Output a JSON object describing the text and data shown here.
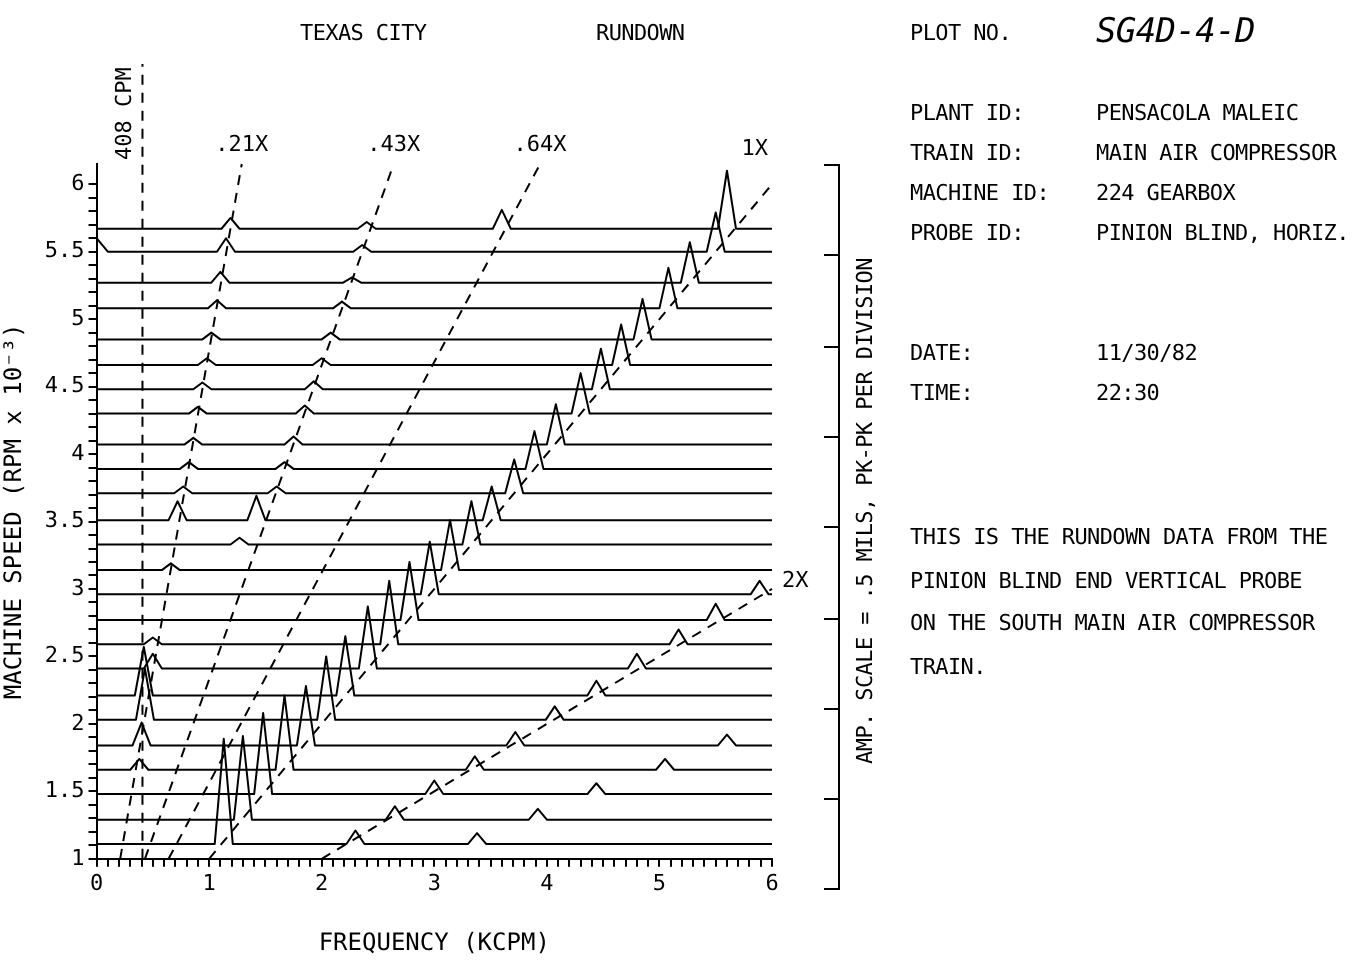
{
  "chart_data": {
    "type": "line",
    "title": "TEXAS CITY",
    "subtitle": "RUNDOWN",
    "xlabel": "FREQUENCY (KCPM)",
    "ylabel": "MACHINE SPEED (RPM x 10⁻³)",
    "y2label": "AMP. SCALE = .5 MILS, PK-PK PER DIVISION",
    "xlim": [
      0,
      6
    ],
    "ylim": [
      1,
      6.15
    ],
    "xticks": [
      0,
      {
        "value": 0.1,
        "label": null
      },
      {
        "value": 0.2,
        "label": null
      },
      {
        "value": 0.3,
        "label": null
      },
      {
        "value": 0.4,
        "label": null
      },
      {
        "value": 0.5,
        "label": null
      },
      {
        "value": 0.6,
        "label": null
      },
      {
        "value": 0.7,
        "label": null
      },
      {
        "value": 0.8,
        "label": null
      },
      {
        "value": 0.9,
        "label": null
      },
      1,
      {
        "value": 1.1,
        "label": null
      },
      {
        "value": 1.2,
        "label": null
      },
      {
        "value": 1.3,
        "label": null
      },
      {
        "value": 1.4,
        "label": null
      },
      {
        "value": 1.5,
        "label": null
      },
      {
        "value": 1.6,
        "label": null
      },
      {
        "value": 1.7,
        "label": null
      },
      {
        "value": 1.8,
        "label": null
      },
      {
        "value": 1.9,
        "label": null
      },
      2,
      {
        "value": 2.1,
        "label": null
      },
      {
        "value": 2.2,
        "label": null
      },
      {
        "value": 2.3,
        "label": null
      },
      {
        "value": 2.4,
        "label": null
      },
      {
        "value": 2.5,
        "label": null
      },
      {
        "value": 2.6,
        "label": null
      },
      {
        "value": 2.7,
        "label": null
      },
      {
        "value": 2.8,
        "label": null
      },
      {
        "value": 2.9,
        "label": null
      },
      3,
      {
        "value": 3.1,
        "label": null
      },
      {
        "value": 3.2,
        "label": null
      },
      {
        "value": 3.3,
        "label": null
      },
      {
        "value": 3.4,
        "label": null
      },
      {
        "value": 3.5,
        "label": null
      },
      {
        "value": 3.6,
        "label": null
      },
      {
        "value": 3.7,
        "label": null
      },
      {
        "value": 3.8,
        "label": null
      },
      {
        "value": 3.9,
        "label": null
      },
      4,
      {
        "value": 4.1,
        "label": null
      },
      {
        "value": 4.2,
        "label": null
      },
      {
        "value": 4.3,
        "label": null
      },
      {
        "value": 4.4,
        "label": null
      },
      {
        "value": 4.5,
        "label": null
      },
      {
        "value": 4.6,
        "label": null
      },
      {
        "value": 4.7,
        "label": null
      },
      {
        "value": 4.8,
        "label": null
      },
      {
        "value": 4.9,
        "label": null
      },
      5,
      {
        "value": 5.1,
        "label": null
      },
      {
        "value": 5.2,
        "label": null
      },
      {
        "value": 5.3,
        "label": null
      },
      {
        "value": 5.4,
        "label": null
      },
      {
        "value": 5.5,
        "label": null
      },
      {
        "value": 5.6,
        "label": null
      },
      {
        "value": 5.7,
        "label": null
      },
      {
        "value": 5.8,
        "label": null
      },
      {
        "value": 5.9,
        "label": null
      },
      6
    ],
    "yticks": [
      1,
      {
        "value": 1.1,
        "label": null
      },
      {
        "value": 1.2,
        "label": null
      },
      {
        "value": 1.3,
        "label": null
      },
      {
        "value": 1.4,
        "label": null
      },
      1.5,
      {
        "value": 1.6,
        "label": null
      },
      {
        "value": 1.7,
        "label": null
      },
      {
        "value": 1.8,
        "label": null
      },
      {
        "value": 1.9,
        "label": null
      },
      2,
      {
        "value": 2.1,
        "label": null
      },
      {
        "value": 2.2,
        "label": null
      },
      {
        "value": 2.3,
        "label": null
      },
      {
        "value": 2.4,
        "label": null
      },
      2.5,
      {
        "value": 2.6,
        "label": null
      },
      {
        "value": 2.7,
        "label": null
      },
      {
        "value": 2.8,
        "label": null
      },
      {
        "value": 2.9,
        "label": null
      },
      3,
      {
        "value": 3.1,
        "label": null
      },
      {
        "value": 3.2,
        "label": null
      },
      {
        "value": 3.3,
        "label": null
      },
      {
        "value": 3.4,
        "label": null
      },
      3.5,
      {
        "value": 3.6,
        "label": null
      },
      {
        "value": 3.7,
        "label": null
      },
      {
        "value": 3.8,
        "label": null
      },
      {
        "value": 3.9,
        "label": null
      },
      4,
      {
        "value": 4.1,
        "label": null
      },
      {
        "value": 4.2,
        "label": null
      },
      {
        "value": 4.3,
        "label": null
      },
      {
        "value": 4.4,
        "label": null
      },
      4.5,
      {
        "value": 4.6,
        "label": null
      },
      {
        "value": 4.7,
        "label": null
      },
      {
        "value": 4.8,
        "label": null
      },
      {
        "value": 4.9,
        "label": null
      },
      5,
      {
        "value": 5.1,
        "label": null
      },
      {
        "value": 5.2,
        "label": null
      },
      {
        "value": 5.3,
        "label": null
      },
      {
        "value": 5.4,
        "label": null
      },
      5.5,
      {
        "value": 5.6,
        "label": null
      },
      {
        "value": 5.7,
        "label": null
      },
      {
        "value": 5.8,
        "label": null
      },
      {
        "value": 5.9,
        "label": null
      },
      6
    ],
    "grid": false,
    "legend": false,
    "marker": "none",
    "ref_lines": [
      {
        "axis": "x",
        "value": 0.408,
        "label": "408 CPM",
        "line_style": "dashed"
      }
    ],
    "annotations": [
      "PLOT NO.",
      "SG4D-4-D",
      "PLANT ID:",
      "PENSACOLA MALEIC",
      "TRAIN ID:",
      "MAIN AIR COMPRESSOR",
      "MACHINE ID:",
      "224 GEARBOX",
      "PROBE ID:",
      "PINION BLIND, HORIZ.",
      "DATE:",
      "11/30/82",
      "TIME:",
      "22:30",
      "THIS IS THE RUNDOWN DATA FROM THE",
      "PINION BLIND END VERTICAL PROBE",
      "ON THE SOUTH MAIN AIR COMPRESSOR",
      "TRAIN."
    ],
    "series": [
      {
        "color": "#000000",
        "x": [
          0,
          1.05,
          1.13,
          1.21,
          2.22,
          2.3,
          2.38,
          3.3,
          3.38,
          3.46,
          6
        ],
        "values": [
          1.11,
          1.11,
          1.89,
          1.11,
          1.11,
          1.21,
          1.11,
          1.11,
          1.19,
          1.11,
          1.11
        ]
      },
      {
        "color": "#000000",
        "x": [
          0,
          1.22,
          1.3,
          1.38,
          2.57,
          2.65,
          2.73,
          3.84,
          3.92,
          4,
          6
        ],
        "values": [
          1.29,
          1.29,
          1.91,
          1.29,
          1.29,
          1.39,
          1.29,
          1.29,
          1.37,
          1.29,
          1.29
        ]
      },
      {
        "color": "#000000",
        "x": [
          0,
          1.4,
          1.48,
          1.56,
          2.92,
          3,
          3.08,
          4.36,
          4.44,
          4.52,
          6
        ],
        "values": [
          1.48,
          1.48,
          2.08,
          1.48,
          1.48,
          1.58,
          1.48,
          1.48,
          1.56,
          1.48,
          1.48
        ]
      },
      {
        "color": "#000000",
        "x": [
          0,
          0.3,
          0.38,
          0.46,
          1.59,
          1.67,
          1.75,
          3.28,
          3.36,
          3.44,
          4.97,
          5.05,
          5.13,
          6
        ],
        "values": [
          1.66,
          1.66,
          1.74,
          1.66,
          1.66,
          2.21,
          1.66,
          1.66,
          1.76,
          1.66,
          1.66,
          1.74,
          1.66,
          1.66
        ]
      },
      {
        "color": "#000000",
        "x": [
          0,
          0.32,
          0.4,
          0.48,
          1.78,
          1.86,
          1.94,
          3.64,
          3.72,
          3.8,
          5.52,
          5.6,
          5.68,
          6
        ],
        "values": [
          1.84,
          1.84,
          2.01,
          1.84,
          1.84,
          2.28,
          1.84,
          1.84,
          1.94,
          1.84,
          1.84,
          1.92,
          1.84,
          1.84
        ]
      },
      {
        "color": "#000000",
        "x": [
          0,
          0.35,
          0.43,
          0.51,
          1.96,
          2.04,
          2.12,
          3.99,
          4.07,
          4.15,
          6
        ],
        "values": [
          2.03,
          2.03,
          2.41,
          2.03,
          2.03,
          2.5,
          2.03,
          2.03,
          2.13,
          2.03,
          2.03
        ]
      },
      {
        "color": "#000000",
        "x": [
          0,
          0.34,
          0.42,
          0.5,
          2.13,
          2.21,
          2.29,
          4.36,
          4.44,
          4.52,
          6
        ],
        "values": [
          2.21,
          2.21,
          2.57,
          2.21,
          2.21,
          2.65,
          2.21,
          2.21,
          2.32,
          2.21,
          2.21
        ]
      },
      {
        "color": "#000000",
        "x": [
          0,
          0.42,
          0.5,
          0.58,
          2.33,
          2.41,
          2.49,
          4.72,
          4.8,
          4.88,
          6
        ],
        "values": [
          2.41,
          2.41,
          2.52,
          2.41,
          2.41,
          2.87,
          2.41,
          2.41,
          2.52,
          2.41,
          2.41
        ]
      },
      {
        "color": "#000000",
        "x": [
          0,
          0.42,
          0.5,
          0.58,
          2.52,
          2.6,
          2.68,
          5.09,
          5.17,
          5.25,
          6
        ],
        "values": [
          2.59,
          2.59,
          2.64,
          2.59,
          2.59,
          3.06,
          2.59,
          2.59,
          2.7,
          2.59,
          2.59
        ]
      },
      {
        "color": "#000000",
        "x": [
          0,
          2.7,
          2.78,
          2.86,
          5.42,
          5.5,
          5.58,
          6
        ],
        "values": [
          2.77,
          2.77,
          3.2,
          2.77,
          2.77,
          2.89,
          2.77,
          2.77
        ]
      },
      {
        "color": "#000000",
        "x": [
          0,
          2.88,
          2.96,
          3.04,
          5.81,
          5.89,
          5.97,
          6
        ],
        "values": [
          2.96,
          2.96,
          3.35,
          2.96,
          2.96,
          3.06,
          2.96,
          2.96
        ]
      },
      {
        "color": "#000000",
        "x": [
          0,
          0.58,
          0.66,
          0.74,
          3.06,
          3.14,
          3.22,
          6
        ],
        "values": [
          3.14,
          3.14,
          3.19,
          3.14,
          3.14,
          3.51,
          3.14,
          3.14
        ]
      },
      {
        "color": "#000000",
        "x": [
          0,
          1.19,
          1.27,
          1.35,
          3.25,
          3.33,
          3.41,
          6
        ],
        "values": [
          3.33,
          3.33,
          3.38,
          3.33,
          3.33,
          3.65,
          3.33,
          3.33
        ]
      },
      {
        "color": "#000000",
        "x": [
          0,
          0.64,
          0.72,
          0.8,
          1.34,
          1.42,
          1.5,
          3.43,
          3.51,
          3.59,
          6
        ],
        "values": [
          3.51,
          3.51,
          3.65,
          3.51,
          3.51,
          3.69,
          3.51,
          3.51,
          3.76,
          3.51,
          3.51
        ]
      },
      {
        "color": "#000000",
        "x": [
          0,
          0.69,
          0.77,
          0.85,
          1.52,
          1.6,
          1.68,
          3.63,
          3.71,
          3.79,
          6
        ],
        "values": [
          3.71,
          3.71,
          3.76,
          3.71,
          3.71,
          3.76,
          3.71,
          3.71,
          3.96,
          3.71,
          3.71
        ]
      },
      {
        "color": "#000000",
        "x": [
          0,
          0.74,
          0.82,
          0.9,
          1.59,
          1.67,
          1.75,
          3.81,
          3.89,
          3.97,
          6
        ],
        "values": [
          3.89,
          3.89,
          3.94,
          3.89,
          3.89,
          3.94,
          3.89,
          3.89,
          4.17,
          3.89,
          3.89
        ]
      },
      {
        "color": "#000000",
        "x": [
          0,
          0.78,
          0.86,
          0.94,
          1.67,
          1.75,
          1.83,
          4,
          4.08,
          4.16,
          6
        ],
        "values": [
          4.07,
          4.07,
          4.12,
          4.07,
          4.07,
          4.13,
          4.07,
          4.07,
          4.37,
          4.07,
          4.07
        ]
      },
      {
        "color": "#000000",
        "x": [
          0,
          0.82,
          0.9,
          0.98,
          1.77,
          1.85,
          1.93,
          4.22,
          4.3,
          4.38,
          6
        ],
        "values": [
          4.3,
          4.3,
          4.35,
          4.3,
          4.3,
          4.36,
          4.3,
          4.3,
          4.6,
          4.3,
          4.3
        ]
      },
      {
        "color": "#000000",
        "x": [
          0,
          0.86,
          0.94,
          1.02,
          1.85,
          1.93,
          2.01,
          4.4,
          4.48,
          4.56,
          6
        ],
        "values": [
          4.48,
          4.48,
          4.53,
          4.48,
          4.48,
          4.54,
          4.48,
          4.48,
          4.78,
          4.48,
          4.48
        ]
      },
      {
        "color": "#000000",
        "x": [
          0,
          0.9,
          0.98,
          1.06,
          1.92,
          2,
          2.08,
          4.58,
          4.66,
          4.74,
          6
        ],
        "values": [
          4.66,
          4.66,
          4.71,
          4.66,
          4.66,
          4.71,
          4.66,
          4.66,
          4.96,
          4.66,
          4.66
        ]
      },
      {
        "color": "#000000",
        "x": [
          0,
          0.94,
          1.02,
          1.1,
          2,
          2.08,
          2.16,
          4.77,
          4.85,
          4.93,
          6
        ],
        "values": [
          4.85,
          4.85,
          4.9,
          4.85,
          4.85,
          4.9,
          4.85,
          4.85,
          5.15,
          4.85,
          4.85
        ]
      },
      {
        "color": "#000000",
        "x": [
          0,
          0.99,
          1.07,
          1.15,
          2.1,
          2.18,
          2.26,
          5,
          5.08,
          5.16,
          6
        ],
        "values": [
          5.08,
          5.08,
          5.14,
          5.08,
          5.08,
          5.13,
          5.08,
          5.08,
          5.38,
          5.08,
          5.08
        ]
      },
      {
        "color": "#000000",
        "x": [
          0,
          1.02,
          1.1,
          1.18,
          2.19,
          2.27,
          2.35,
          5.19,
          5.27,
          5.35,
          6
        ],
        "values": [
          5.27,
          5.27,
          5.35,
          5.27,
          5.27,
          5.31,
          5.27,
          5.27,
          5.57,
          5.27,
          5.27
        ]
      },
      {
        "color": "#000000",
        "x": [
          0,
          0.1,
          1.07,
          1.15,
          1.23,
          2.28,
          2.36,
          2.44,
          5.42,
          5.5,
          5.58,
          6
        ],
        "values": [
          5.6,
          5.5,
          5.5,
          5.6,
          5.5,
          5.5,
          5.55,
          5.5,
          5.5,
          5.79,
          5.5,
          5.5
        ]
      },
      {
        "color": "#000000",
        "x": [
          0,
          1.11,
          1.19,
          1.27,
          2.32,
          2.4,
          2.48,
          3.52,
          3.6,
          3.68,
          5.52,
          5.6,
          5.68,
          6
        ],
        "values": [
          5.67,
          5.67,
          5.75,
          5.67,
          5.67,
          5.72,
          5.67,
          5.67,
          5.81,
          5.67,
          5.67,
          6.1,
          5.67,
          5.67
        ]
      },
      {
        "name": ".21X",
        "color": "#000000",
        "line_style": "dashed",
        "x": [
          0.21,
          1.29
        ],
        "values": [
          1,
          6.15
        ]
      },
      {
        "name": ".43X",
        "color": "#000000",
        "line_style": "dashed",
        "x": [
          0.43,
          2.64
        ],
        "values": [
          1,
          6.15
        ]
      },
      {
        "name": ".64X",
        "color": "#000000",
        "line_style": "dashed",
        "x": [
          0.64,
          3.94
        ],
        "values": [
          1,
          6.15
        ]
      },
      {
        "name": "1X",
        "color": "#000000",
        "line_style": "dashed",
        "x": [
          1,
          6
        ],
        "values": [
          1,
          6
        ]
      },
      {
        "name": "2X",
        "color": "#000000",
        "line_style": "dashed",
        "x": [
          2,
          6
        ],
        "values": [
          1,
          3
        ]
      }
    ]
  }
}
